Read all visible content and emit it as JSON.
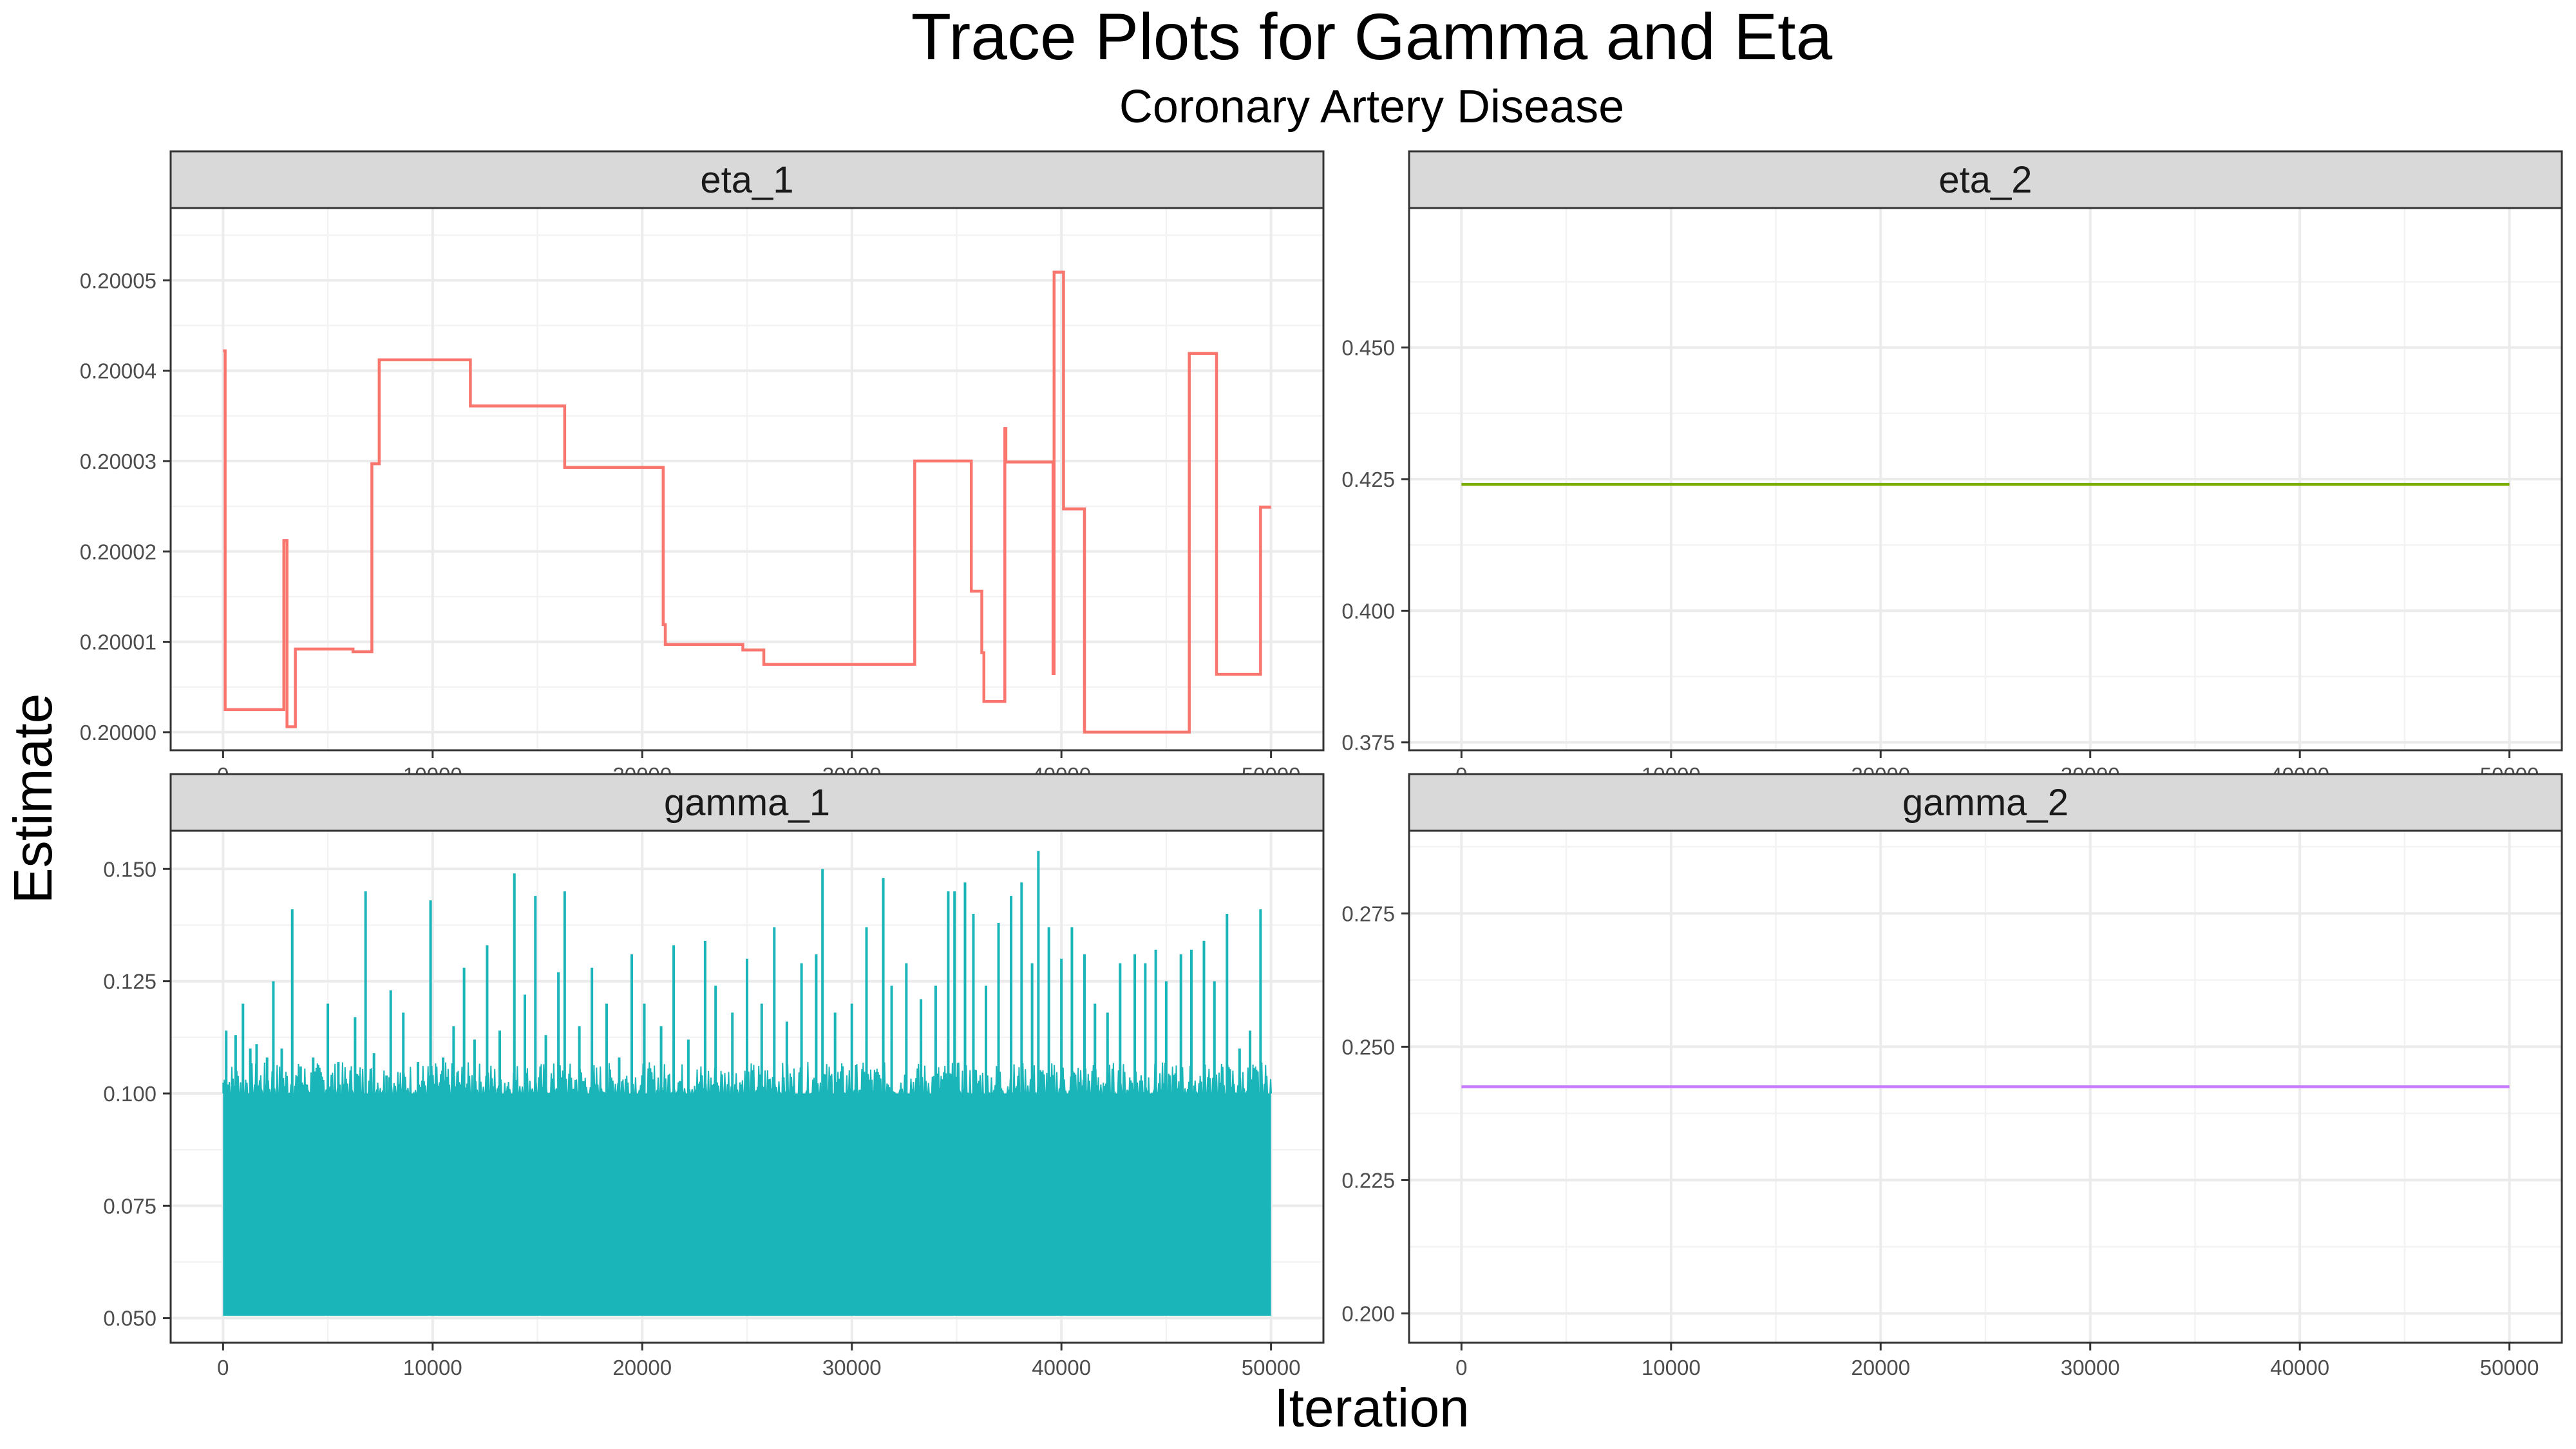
{
  "title": "Trace Plots for Gamma and Eta",
  "subtitle": "Coronary Artery Disease",
  "xlabel": "Iteration",
  "ylabel": "Estimate",
  "chart_data": [
    {
      "type": "line",
      "panel": "eta_1",
      "color": "#f8766d",
      "xlim": [
        -2500,
        52500
      ],
      "ylim": [
        199998.0,
        200058.0
      ],
      "y_scale": 1e-06,
      "x_ticks": [
        0,
        10000,
        20000,
        30000,
        40000,
        50000
      ],
      "x_tick_labels": [
        "0",
        "10000",
        "20000",
        "30000",
        "40000",
        "50000"
      ],
      "y_ticks": [
        200000,
        200010,
        200020,
        200030,
        200040,
        200050
      ],
      "y_tick_labels": [
        "0.20000",
        "0.20001",
        "0.20002",
        "0.20003",
        "0.20004",
        "0.20005"
      ],
      "steps": [
        [
          0,
          200042.2
        ],
        [
          100,
          200002.5
        ],
        [
          2900,
          200021.2
        ],
        [
          3050,
          200000.6
        ],
        [
          3450,
          200009.2
        ],
        [
          6200,
          200008.9
        ],
        [
          7100,
          200029.7
        ],
        [
          7450,
          200041.2
        ],
        [
          11800,
          200036.1
        ],
        [
          16300,
          200029.3
        ],
        [
          21000,
          200011.9
        ],
        [
          21100,
          200009.7
        ],
        [
          24800,
          200009.1
        ],
        [
          25800,
          200007.5
        ],
        [
          33000,
          200030.0
        ],
        [
          35700,
          200015.6
        ],
        [
          36200,
          200008.8
        ],
        [
          36300,
          200003.4
        ],
        [
          37300,
          200033.6
        ],
        [
          37350,
          200029.9
        ],
        [
          39600,
          200006.5
        ],
        [
          39650,
          200050.9
        ],
        [
          40100,
          200024.7
        ],
        [
          41100,
          200000.0
        ],
        [
          46100,
          200041.9
        ],
        [
          47400,
          200006.4
        ],
        [
          49500,
          200024.9
        ]
      ],
      "x_end": 50000
    },
    {
      "type": "line",
      "panel": "eta_2",
      "color": "#7cae00",
      "xlim": [
        -2500,
        52500
      ],
      "ylim": [
        0.3735,
        0.4765
      ],
      "y_scale": 1,
      "x_ticks": [
        0,
        10000,
        20000,
        30000,
        40000,
        50000
      ],
      "x_tick_labels": [
        "0",
        "10000",
        "20000",
        "30000",
        "40000",
        "50000"
      ],
      "y_ticks": [
        0.375,
        0.4,
        0.425,
        0.45
      ],
      "y_tick_labels": [
        "0.375",
        "0.400",
        "0.425",
        "0.450"
      ],
      "constant": 0.424,
      "x_range": [
        0,
        50000
      ]
    },
    {
      "type": "line",
      "panel": "gamma_1",
      "color": "#1ab5b8",
      "xlim": [
        -2500,
        52500
      ],
      "ylim": [
        0.0445,
        0.1585
      ],
      "y_scale": 1,
      "x_ticks": [
        0,
        10000,
        20000,
        30000,
        40000,
        50000
      ],
      "x_tick_labels": [
        "0",
        "10000",
        "20000",
        "30000",
        "40000",
        "50000"
      ],
      "y_ticks": [
        0.05,
        0.075,
        0.1,
        0.125,
        0.15
      ],
      "y_tick_labels": [
        "0.050",
        "0.075",
        "0.100",
        "0.125",
        "0.150"
      ],
      "x_range": [
        0,
        50000
      ],
      "band_bottom": 0.0505,
      "typical_top": 0.1,
      "spikes": [
        [
          150,
          0.114
        ],
        [
          600,
          0.113
        ],
        [
          950,
          0.12
        ],
        [
          1300,
          0.11
        ],
        [
          1600,
          0.111
        ],
        [
          2100,
          0.108
        ],
        [
          2400,
          0.125
        ],
        [
          2800,
          0.11
        ],
        [
          3300,
          0.141
        ],
        [
          3700,
          0.106
        ],
        [
          4300,
          0.108
        ],
        [
          5000,
          0.12
        ],
        [
          5500,
          0.107
        ],
        [
          6300,
          0.117
        ],
        [
          6800,
          0.145
        ],
        [
          7200,
          0.109
        ],
        [
          7800,
          0.104
        ],
        [
          8000,
          0.123
        ],
        [
          8600,
          0.118
        ],
        [
          9300,
          0.107
        ],
        [
          9900,
          0.143
        ],
        [
          10500,
          0.108
        ],
        [
          11000,
          0.115
        ],
        [
          11500,
          0.128
        ],
        [
          12000,
          0.112
        ],
        [
          12600,
          0.133
        ],
        [
          13200,
          0.114
        ],
        [
          13900,
          0.149
        ],
        [
          14400,
          0.122
        ],
        [
          14900,
          0.144
        ],
        [
          15400,
          0.113
        ],
        [
          16000,
          0.127
        ],
        [
          16300,
          0.145
        ],
        [
          17000,
          0.115
        ],
        [
          17600,
          0.128
        ],
        [
          18300,
          0.12
        ],
        [
          18900,
          0.108
        ],
        [
          19500,
          0.131
        ],
        [
          20100,
          0.12
        ],
        [
          20900,
          0.115
        ],
        [
          21500,
          0.133
        ],
        [
          22200,
          0.112
        ],
        [
          23000,
          0.134
        ],
        [
          23500,
          0.124
        ],
        [
          24300,
          0.118
        ],
        [
          25000,
          0.13
        ],
        [
          25700,
          0.12
        ],
        [
          26300,
          0.137
        ],
        [
          26900,
          0.116
        ],
        [
          27600,
          0.129
        ],
        [
          28300,
          0.131
        ],
        [
          28600,
          0.15
        ],
        [
          29200,
          0.118
        ],
        [
          30000,
          0.12
        ],
        [
          30700,
          0.137
        ],
        [
          31500,
          0.148
        ],
        [
          31900,
          0.124
        ],
        [
          32600,
          0.129
        ],
        [
          33300,
          0.121
        ],
        [
          34000,
          0.124
        ],
        [
          34600,
          0.145
        ],
        [
          34900,
          0.145
        ],
        [
          35400,
          0.147
        ],
        [
          35800,
          0.14
        ],
        [
          36400,
          0.124
        ],
        [
          37000,
          0.138
        ],
        [
          37600,
          0.144
        ],
        [
          38100,
          0.147
        ],
        [
          38600,
          0.129
        ],
        [
          38900,
          0.154
        ],
        [
          39400,
          0.137
        ],
        [
          40000,
          0.13
        ],
        [
          40500,
          0.137
        ],
        [
          41100,
          0.131
        ],
        [
          41600,
          0.12
        ],
        [
          42200,
          0.118
        ],
        [
          42800,
          0.129
        ],
        [
          43500,
          0.131
        ],
        [
          44000,
          0.129
        ],
        [
          44500,
          0.132
        ],
        [
          45000,
          0.125
        ],
        [
          45700,
          0.131
        ],
        [
          46200,
          0.132
        ],
        [
          46800,
          0.134
        ],
        [
          47300,
          0.125
        ],
        [
          47900,
          0.14
        ],
        [
          48500,
          0.11
        ],
        [
          49000,
          0.114
        ],
        [
          49500,
          0.141
        ]
      ]
    },
    {
      "type": "line",
      "panel": "gamma_2",
      "color": "#c77cff",
      "xlim": [
        -2500,
        52500
      ],
      "ylim": [
        0.1945,
        0.2905
      ],
      "y_scale": 1,
      "x_ticks": [
        0,
        10000,
        20000,
        30000,
        40000,
        50000
      ],
      "x_tick_labels": [
        "0",
        "10000",
        "20000",
        "30000",
        "40000",
        "50000"
      ],
      "y_ticks": [
        0.2,
        0.225,
        0.25,
        0.275
      ],
      "y_tick_labels": [
        "0.200",
        "0.225",
        "0.250",
        "0.275"
      ],
      "constant": 0.2425,
      "x_range": [
        0,
        50000
      ]
    }
  ]
}
